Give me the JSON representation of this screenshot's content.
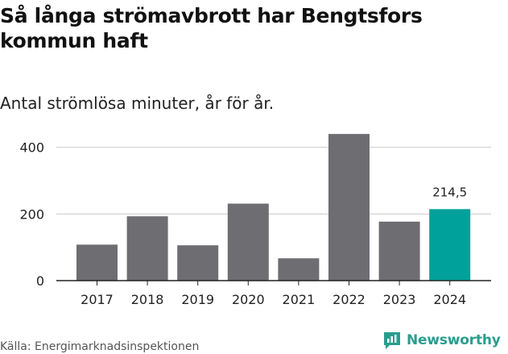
{
  "header": {
    "title": "Så långa strömavbrott har Bengtsfors kommun haft",
    "subtitle": "Antal strömlösa minuter, år för år."
  },
  "footer": {
    "source": "Källa: Energimarknadsinspektionen",
    "brand": "Newsworthy"
  },
  "colors": {
    "bar": "#6e6d72",
    "highlight": "#00a19a",
    "grid": "#cccccc",
    "axis": "#222222"
  },
  "chart_data": {
    "type": "bar",
    "title": "Så långa strömavbrott har Bengtsfors kommun haft",
    "subtitle": "Antal strömlösa minuter, år för år.",
    "xlabel": "",
    "ylabel": "",
    "categories": [
      "2017",
      "2018",
      "2019",
      "2020",
      "2021",
      "2022",
      "2023",
      "2024"
    ],
    "values": [
      108,
      193,
      106,
      231,
      67,
      440,
      177,
      214.5
    ],
    "highlight_index": 7,
    "data_labels": [
      {
        "index": 7,
        "text": "214,5"
      }
    ],
    "yticks": [
      0,
      200,
      400
    ],
    "ylim": [
      0,
      450
    ],
    "grid": true
  }
}
